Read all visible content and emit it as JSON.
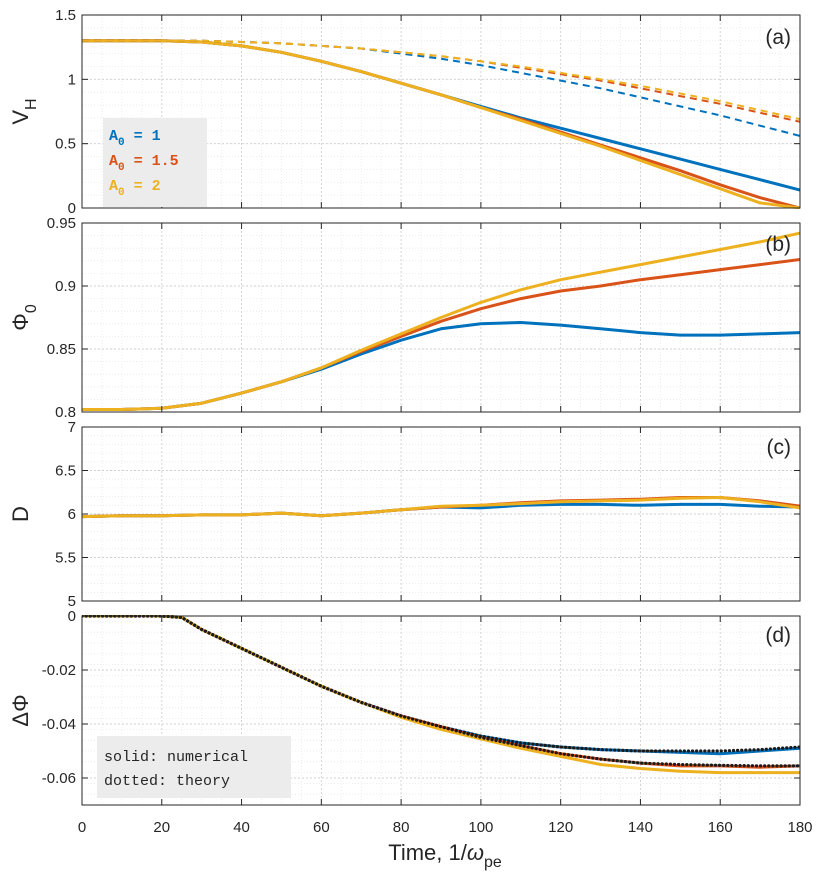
{
  "colors": {
    "A1": "#0072BD",
    "A1_5": "#D95319",
    "A2": "#EDB120",
    "theory": "#1a1a1a",
    "grid_major": "#d0d0d0",
    "grid_minor": "#e8e8e8",
    "legend_bg": "#ececec"
  },
  "xaxis": {
    "label_main": "Time, 1/",
    "label_omega": "ω",
    "label_sub": "pe",
    "xlim": [
      0,
      180
    ],
    "ticks": [
      "0",
      "20",
      "40",
      "60",
      "80",
      "100",
      "120",
      "140",
      "160",
      "180"
    ]
  },
  "chart_data": [
    {
      "panel": "(a)",
      "type": "line",
      "ylabel_main": "V",
      "ylabel_sub": "H",
      "ylim": [
        0,
        1.5
      ],
      "yticks": [
        0,
        0.5,
        1,
        1.5
      ],
      "ytick_labels": [
        "0",
        "0.5",
        "1",
        "1.5"
      ],
      "grid": true,
      "legend": {
        "placement": "lower-left",
        "entries": [
          "A₀ = 1",
          "A₀ = 1.5",
          "A₀ = 2"
        ]
      },
      "x": [
        0,
        10,
        20,
        30,
        40,
        50,
        60,
        70,
        80,
        90,
        100,
        110,
        120,
        130,
        140,
        150,
        160,
        170,
        180
      ],
      "series": [
        {
          "name": "A0 = 1",
          "style": "solid",
          "color_key": "A1",
          "values": [
            1.3,
            1.3,
            1.3,
            1.29,
            1.26,
            1.21,
            1.14,
            1.06,
            0.97,
            0.88,
            0.79,
            0.7,
            0.62,
            0.54,
            0.46,
            0.38,
            0.3,
            0.22,
            0.14
          ]
        },
        {
          "name": "A0 = 1.5",
          "style": "solid",
          "color_key": "A1_5",
          "values": [
            1.3,
            1.3,
            1.3,
            1.29,
            1.26,
            1.21,
            1.14,
            1.06,
            0.97,
            0.88,
            0.78,
            0.69,
            0.59,
            0.49,
            0.39,
            0.29,
            0.18,
            0.08,
            0.0
          ]
        },
        {
          "name": "A0 = 2",
          "style": "solid",
          "color_key": "A2",
          "values": [
            1.3,
            1.3,
            1.3,
            1.29,
            1.26,
            1.21,
            1.14,
            1.06,
            0.97,
            0.88,
            0.78,
            0.68,
            0.58,
            0.48,
            0.37,
            0.26,
            0.15,
            0.04,
            0.0
          ]
        },
        {
          "name": "A0 = 1 theory",
          "style": "dashed",
          "color_key": "A1",
          "values": [
            1.3,
            1.3,
            1.3,
            1.3,
            1.29,
            1.28,
            1.26,
            1.24,
            1.2,
            1.16,
            1.11,
            1.05,
            0.99,
            0.93,
            0.86,
            0.79,
            0.72,
            0.64,
            0.56
          ]
        },
        {
          "name": "A0 = 1.5 theory",
          "style": "dashed",
          "color_key": "A1_5",
          "values": [
            1.3,
            1.3,
            1.3,
            1.3,
            1.29,
            1.28,
            1.26,
            1.24,
            1.21,
            1.18,
            1.14,
            1.09,
            1.04,
            0.99,
            0.93,
            0.87,
            0.81,
            0.74,
            0.67
          ]
        },
        {
          "name": "A0 = 2 theory",
          "style": "dashed",
          "color_key": "A2",
          "values": [
            1.3,
            1.3,
            1.3,
            1.3,
            1.29,
            1.28,
            1.26,
            1.24,
            1.21,
            1.18,
            1.14,
            1.1,
            1.05,
            1.0,
            0.95,
            0.89,
            0.83,
            0.76,
            0.69
          ]
        }
      ]
    },
    {
      "panel": "(b)",
      "type": "line",
      "ylabel_main": "Φ",
      "ylabel_sub": "0",
      "ylim": [
        0.8,
        0.95
      ],
      "yticks": [
        0.8,
        0.85,
        0.9,
        0.95
      ],
      "ytick_labels": [
        "0.8",
        "0.85",
        "0.9",
        "0.95"
      ],
      "grid": true,
      "x": [
        0,
        10,
        20,
        30,
        40,
        50,
        60,
        70,
        80,
        90,
        100,
        110,
        120,
        130,
        140,
        150,
        160,
        170,
        180
      ],
      "series": [
        {
          "name": "A0 = 1",
          "style": "solid",
          "color_key": "A1",
          "values": [
            0.802,
            0.802,
            0.803,
            0.807,
            0.815,
            0.824,
            0.834,
            0.846,
            0.857,
            0.866,
            0.87,
            0.871,
            0.869,
            0.866,
            0.863,
            0.861,
            0.861,
            0.862,
            0.863
          ]
        },
        {
          "name": "A0 = 1.5",
          "style": "solid",
          "color_key": "A1_5",
          "values": [
            0.802,
            0.802,
            0.803,
            0.807,
            0.815,
            0.824,
            0.835,
            0.848,
            0.86,
            0.872,
            0.882,
            0.89,
            0.896,
            0.9,
            0.905,
            0.909,
            0.913,
            0.917,
            0.921
          ]
        },
        {
          "name": "A0 = 2",
          "style": "solid",
          "color_key": "A2",
          "values": [
            0.802,
            0.802,
            0.803,
            0.807,
            0.815,
            0.824,
            0.835,
            0.849,
            0.862,
            0.875,
            0.887,
            0.897,
            0.905,
            0.911,
            0.917,
            0.923,
            0.929,
            0.935,
            0.942
          ]
        }
      ]
    },
    {
      "panel": "(c)",
      "type": "line",
      "ylabel_main": "D",
      "ylim": [
        5,
        7
      ],
      "yticks": [
        5,
        5.5,
        6,
        6.5,
        7
      ],
      "ytick_labels": [
        "5",
        "5.5",
        "6",
        "6.5",
        "7"
      ],
      "grid": true,
      "x": [
        0,
        10,
        20,
        30,
        40,
        50,
        60,
        70,
        80,
        90,
        100,
        110,
        120,
        130,
        140,
        150,
        160,
        170,
        180
      ],
      "series": [
        {
          "name": "A0 = 1",
          "style": "solid",
          "color_key": "A1",
          "values": [
            5.97,
            5.98,
            5.98,
            5.99,
            5.99,
            6.01,
            5.98,
            6.01,
            6.05,
            6.08,
            6.07,
            6.1,
            6.11,
            6.11,
            6.1,
            6.11,
            6.11,
            6.09,
            6.08
          ]
        },
        {
          "name": "A0 = 1.5",
          "style": "solid",
          "color_key": "A1_5",
          "values": [
            5.97,
            5.98,
            5.98,
            5.99,
            5.99,
            6.01,
            5.98,
            6.01,
            6.05,
            6.08,
            6.1,
            6.13,
            6.15,
            6.16,
            6.17,
            6.19,
            6.19,
            6.15,
            6.09
          ]
        },
        {
          "name": "A0 = 2",
          "style": "solid",
          "color_key": "A2",
          "values": [
            5.97,
            5.98,
            5.98,
            5.99,
            5.99,
            6.01,
            5.98,
            6.01,
            6.05,
            6.09,
            6.1,
            6.12,
            6.14,
            6.15,
            6.16,
            6.18,
            6.19,
            6.14,
            6.07
          ]
        }
      ]
    },
    {
      "panel": "(d)",
      "type": "line",
      "ylabel_main": "ΔΦ",
      "ylim": [
        -0.07,
        0
      ],
      "yticks": [
        -0.06,
        -0.04,
        -0.02,
        0
      ],
      "ytick_labels": [
        "-0.06",
        "-0.04",
        "-0.02",
        "0"
      ],
      "grid": true,
      "legend": {
        "placement": "lower-left",
        "entries": [
          "solid: numerical",
          "dotted: theory"
        ]
      },
      "x": [
        0,
        10,
        20,
        25,
        30,
        40,
        50,
        60,
        70,
        80,
        90,
        100,
        110,
        120,
        130,
        140,
        150,
        160,
        170,
        180
      ],
      "series": [
        {
          "name": "A0 = 1",
          "style": "solid",
          "color_key": "A1",
          "values": [
            0,
            0,
            0,
            -0.0005,
            -0.005,
            -0.012,
            -0.019,
            -0.026,
            -0.032,
            -0.037,
            -0.041,
            -0.0445,
            -0.047,
            -0.0485,
            -0.0495,
            -0.05,
            -0.0505,
            -0.051,
            -0.05,
            -0.049
          ]
        },
        {
          "name": "A0 = 1.5",
          "style": "solid",
          "color_key": "A1_5",
          "values": [
            0,
            0,
            0,
            -0.0005,
            -0.005,
            -0.012,
            -0.019,
            -0.026,
            -0.032,
            -0.037,
            -0.041,
            -0.045,
            -0.048,
            -0.051,
            -0.053,
            -0.0545,
            -0.0555,
            -0.0555,
            -0.056,
            -0.0555
          ]
        },
        {
          "name": "A0 = 2",
          "style": "solid",
          "color_key": "A2",
          "values": [
            0,
            0,
            0,
            -0.0005,
            -0.005,
            -0.012,
            -0.019,
            -0.026,
            -0.032,
            -0.0375,
            -0.042,
            -0.0455,
            -0.049,
            -0.052,
            -0.055,
            -0.0565,
            -0.0575,
            -0.058,
            -0.058,
            -0.058
          ]
        },
        {
          "name": "A0 = 1 theory",
          "style": "dotted",
          "color_key": "theory",
          "values": [
            0,
            0,
            0,
            -0.0005,
            -0.005,
            -0.012,
            -0.019,
            -0.026,
            -0.032,
            -0.037,
            -0.041,
            -0.0445,
            -0.047,
            -0.0485,
            -0.0495,
            -0.05,
            -0.05,
            -0.05,
            -0.0495,
            -0.0485
          ]
        },
        {
          "name": "A0 = 2 theory",
          "style": "dotted",
          "color_key": "theory",
          "values": [
            0,
            0,
            0,
            -0.0005,
            -0.005,
            -0.012,
            -0.019,
            -0.026,
            -0.032,
            -0.037,
            -0.041,
            -0.045,
            -0.048,
            -0.051,
            -0.053,
            -0.0545,
            -0.055,
            -0.0553,
            -0.0555,
            -0.0555
          ]
        }
      ]
    }
  ],
  "legend_a": {
    "items": [
      {
        "letter": "A",
        "sub": "0",
        "rest": " = 1",
        "color_key": "A1"
      },
      {
        "letter": "A",
        "sub": "0",
        "rest": " = 1.5",
        "color_key": "A1_5"
      },
      {
        "letter": "A",
        "sub": "0",
        "rest": " = 2",
        "color_key": "A2"
      }
    ]
  },
  "legend_d": {
    "line1": "solid: numerical",
    "line2": "dotted: theory"
  }
}
